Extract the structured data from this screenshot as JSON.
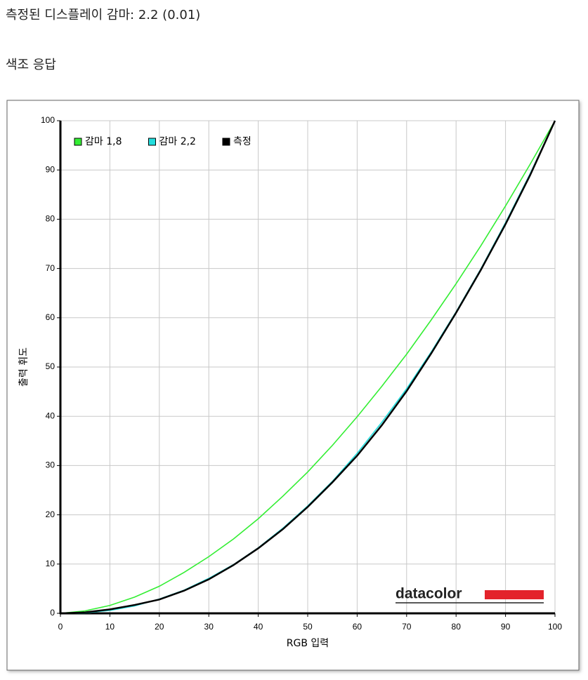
{
  "header": {
    "title": "측정된 디스플레이 감마: 2.2 (0.01)",
    "section": "색조 응답"
  },
  "logo": "datacolor",
  "chart_data": {
    "type": "line",
    "x_label": "RGB 입력",
    "y_label": "출력 휘도",
    "x": [
      0,
      5,
      10,
      15,
      20,
      25,
      30,
      35,
      40,
      45,
      50,
      55,
      60,
      65,
      70,
      75,
      80,
      85,
      90,
      95,
      100
    ],
    "series": [
      {
        "name": "감마 1,8",
        "color": "#33ee33",
        "values": [
          0,
          0.5,
          1.6,
          3.3,
          5.5,
          8.3,
          11.5,
          15.1,
          19.2,
          23.8,
          28.7,
          34.1,
          39.9,
          46.1,
          52.6,
          59.6,
          66.9,
          74.6,
          82.7,
          91.2,
          100
        ]
      },
      {
        "name": "감마 2,2",
        "color": "#22dddd",
        "values": [
          0,
          0.1,
          0.6,
          1.5,
          2.9,
          4.7,
          7.1,
          9.9,
          13.3,
          17.3,
          21.8,
          26.8,
          32.5,
          38.8,
          45.6,
          53.1,
          61.2,
          69.9,
          79.3,
          89.3,
          100
        ]
      },
      {
        "name": "측정",
        "color": "#000000",
        "values": [
          0,
          0.2,
          0.8,
          1.7,
          2.8,
          4.6,
          6.9,
          9.8,
          13.2,
          17.1,
          21.6,
          26.6,
          32.0,
          38.2,
          45.1,
          52.8,
          61.0,
          69.7,
          79.0,
          89.0,
          100
        ]
      }
    ],
    "xlim": [
      0,
      100
    ],
    "xticks": [
      0,
      10,
      20,
      30,
      40,
      50,
      60,
      70,
      80,
      90,
      100
    ],
    "ylim": [
      0,
      100
    ],
    "yticks": [
      0,
      10,
      20,
      30,
      40,
      50,
      60,
      70,
      80,
      90,
      100
    ],
    "grid": true,
    "legend": "upper left"
  }
}
